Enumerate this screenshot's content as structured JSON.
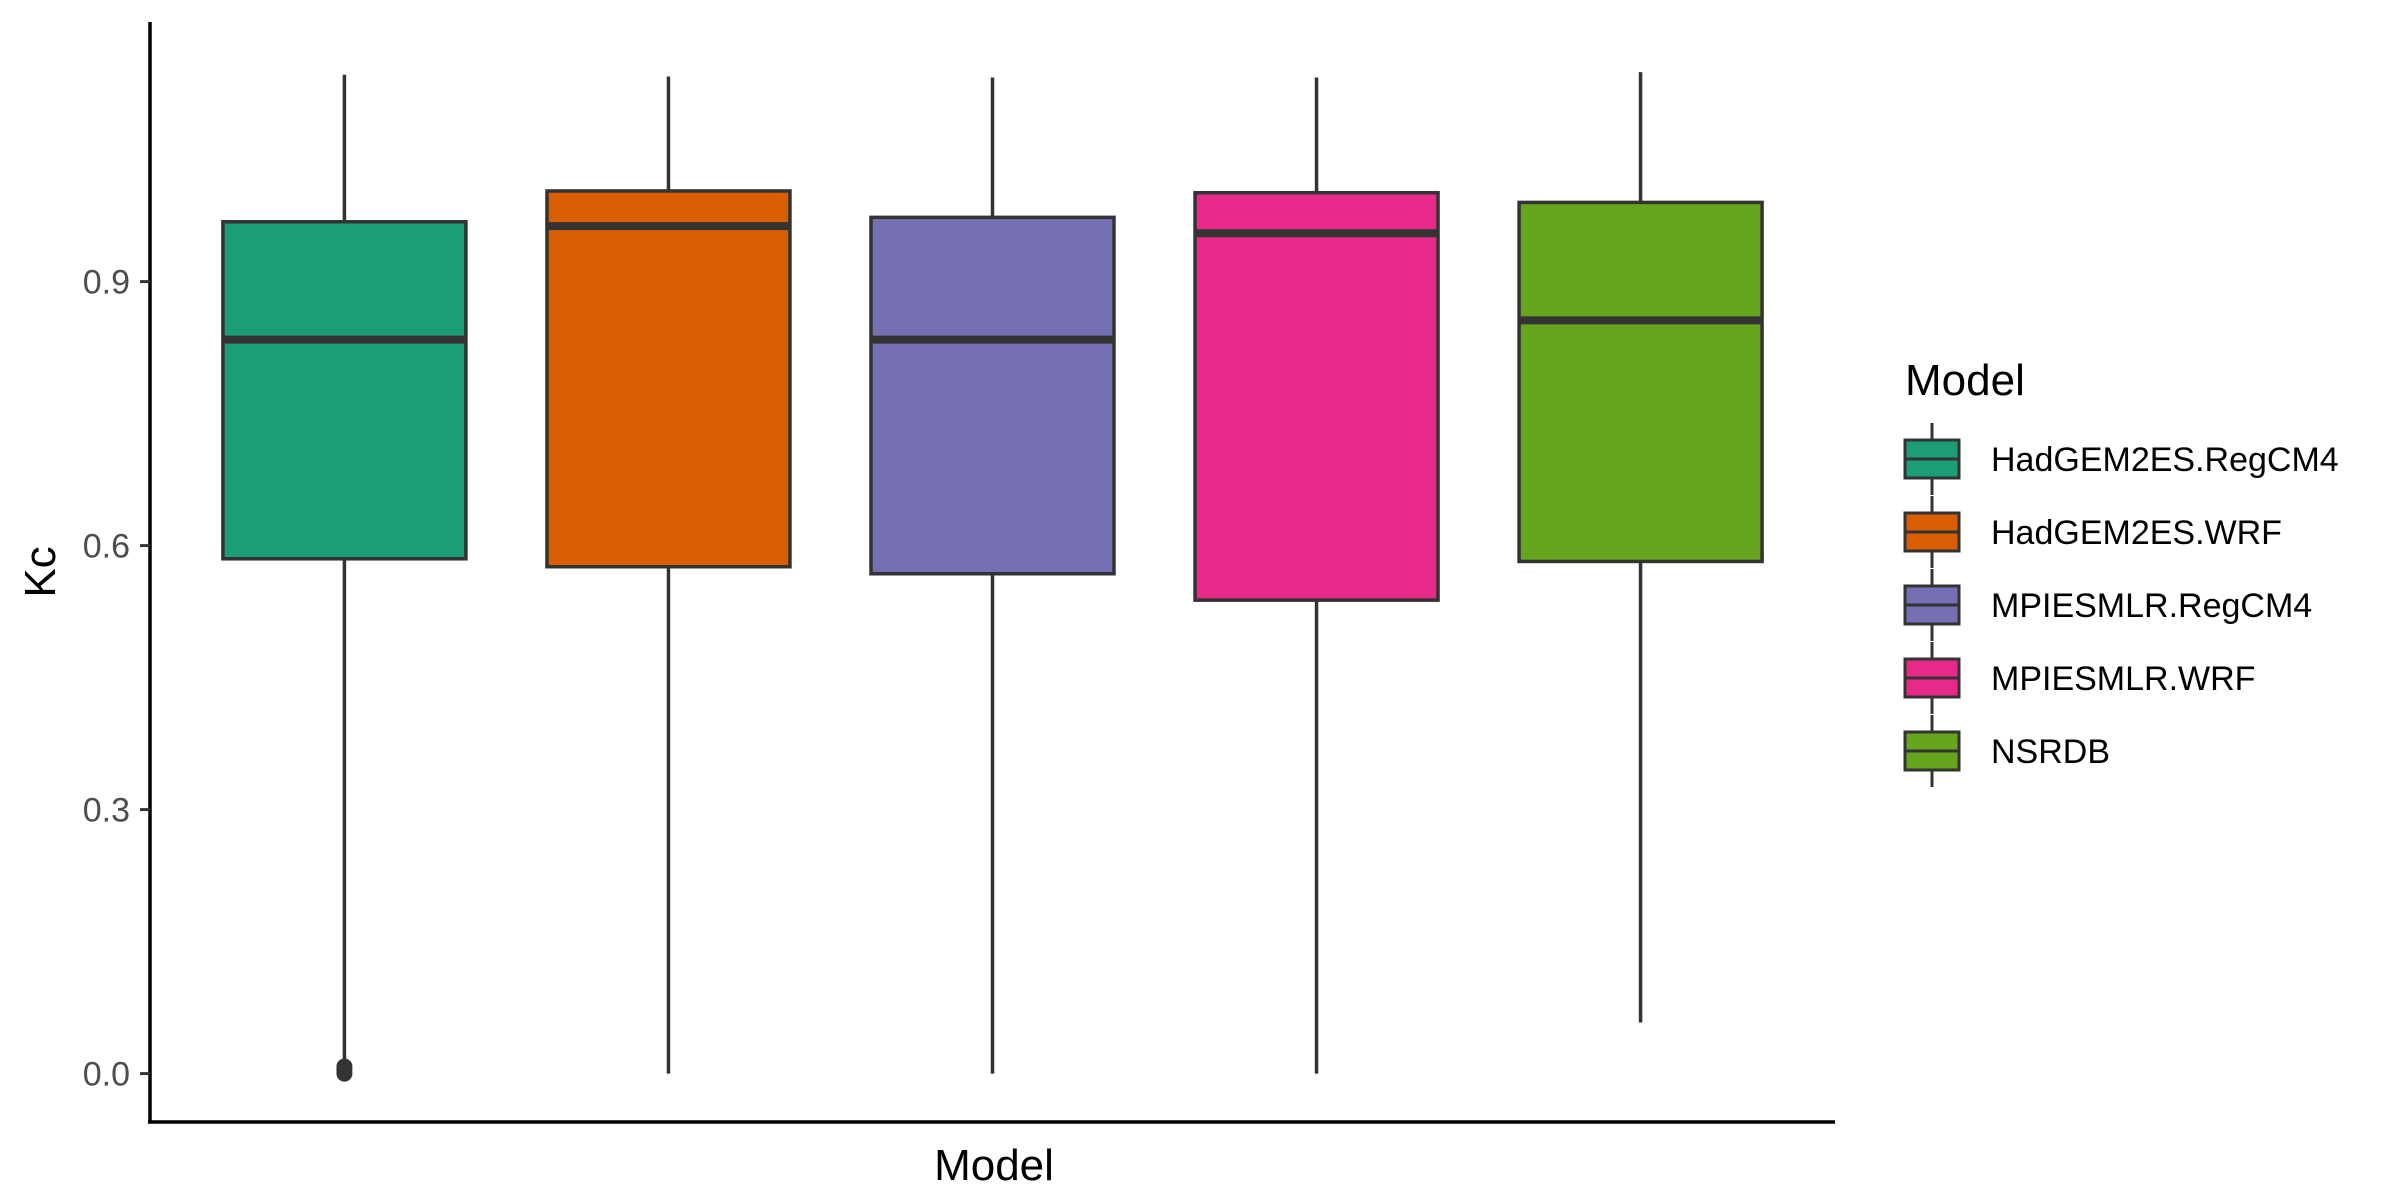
{
  "chart_data": {
    "type": "boxplot",
    "xlabel": "Model",
    "ylabel": "Kc",
    "ylim": [
      -0.055,
      1.195
    ],
    "yticks": [
      0.0,
      0.3,
      0.6,
      0.9
    ],
    "ytick_labels": [
      "0.0",
      "0.3",
      "0.6",
      "0.9"
    ],
    "grid": false,
    "legend": {
      "title": "Model",
      "position": "right"
    },
    "series": [
      {
        "name": "HadGEM2ES.RegCM4",
        "color": "#1B9E77",
        "whisker_low": 0.0,
        "q1": 0.585,
        "median": 0.834,
        "q3": 0.968,
        "whisker_high": 1.135,
        "outliers": [
          0.0,
          0.004,
          0.008
        ]
      },
      {
        "name": "HadGEM2ES.WRF",
        "color": "#D95F02",
        "whisker_low": 0.0,
        "q1": 0.576,
        "median": 0.963,
        "q3": 1.003,
        "whisker_high": 1.133,
        "outliers": []
      },
      {
        "name": "MPIESMLR.RegCM4",
        "color": "#7570B3",
        "whisker_low": 0.0,
        "q1": 0.568,
        "median": 0.834,
        "q3": 0.973,
        "whisker_high": 1.132,
        "outliers": []
      },
      {
        "name": "MPIESMLR.WRF",
        "color": "#E7298A",
        "whisker_low": 0.0,
        "q1": 0.538,
        "median": 0.955,
        "q3": 1.001,
        "whisker_high": 1.132,
        "outliers": []
      },
      {
        "name": "NSRDB",
        "color": "#66A61E",
        "whisker_low": 0.058,
        "q1": 0.582,
        "median": 0.856,
        "q3": 0.99,
        "whisker_high": 1.138,
        "outliers": []
      }
    ]
  }
}
